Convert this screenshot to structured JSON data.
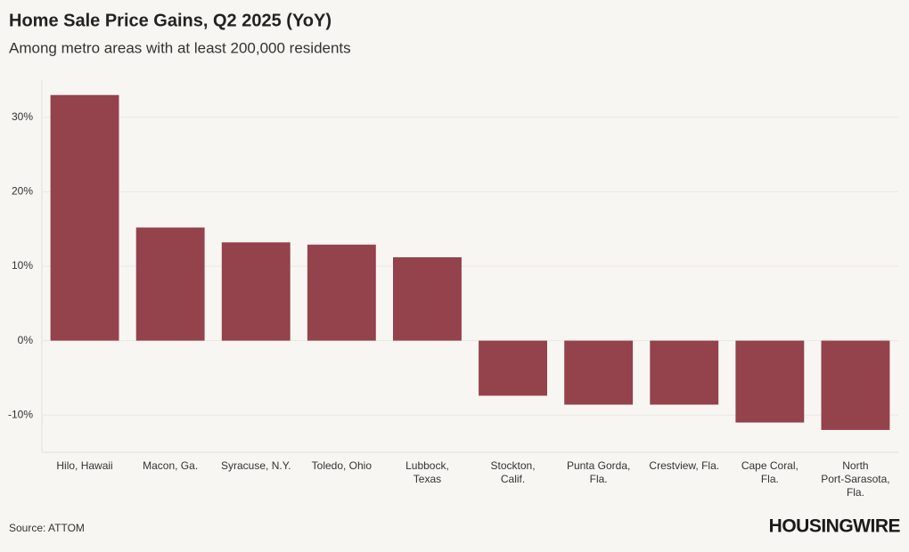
{
  "chart_data": {
    "type": "bar",
    "title": "Home Sale Price Gains, Q2 2025 (YoY)",
    "subtitle": "Among metro areas with at least 200,000 residents",
    "source": "Source: ATTOM",
    "brand": "HOUSINGWIRE",
    "categories": [
      [
        "Hilo, Hawaii"
      ],
      [
        "Macon, Ga."
      ],
      [
        "Syracuse, N.Y."
      ],
      [
        "Toledo, Ohio"
      ],
      [
        "Lubbock,",
        "Texas"
      ],
      [
        "Stockton,",
        "Calif."
      ],
      [
        "Punta Gorda,",
        "Fla."
      ],
      [
        "Crestview, Fla."
      ],
      [
        "Cape Coral,",
        "Fla."
      ],
      [
        "North",
        "Port-Sarasota,",
        "Fla."
      ]
    ],
    "values": [
      33.0,
      15.2,
      13.2,
      12.9,
      11.2,
      -7.4,
      -8.6,
      -8.6,
      -11.0,
      -12.0
    ],
    "color": "#94424c",
    "ylim": [
      -15,
      35
    ],
    "yticks": [
      {
        "value": -10,
        "label": "-10%"
      },
      {
        "value": 0,
        "label": "0%"
      },
      {
        "value": 10,
        "label": "10%"
      },
      {
        "value": 20,
        "label": "20%"
      },
      {
        "value": 30,
        "label": "30%"
      }
    ],
    "grid": true
  }
}
